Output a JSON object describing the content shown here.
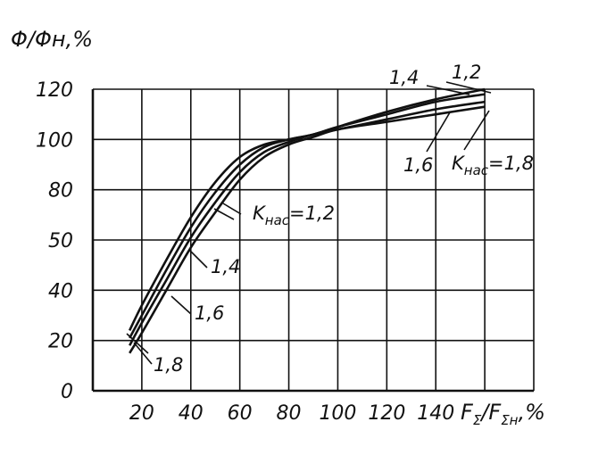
{
  "chart_data": {
    "type": "line",
    "ylabel": "Φ/Φн,%",
    "xlabel": "FΣ/FΣн,%",
    "x_ticks": [
      "20",
      "40",
      "60",
      "80",
      "100",
      "120",
      "140"
    ],
    "y_ticks": [
      "0",
      "20",
      "40",
      "50",
      "80",
      "100",
      "120"
    ],
    "grid": true,
    "series": [
      {
        "name": "1,2",
        "x": [
          15,
          20,
          30,
          40,
          50,
          60,
          70,
          80,
          90,
          100,
          120,
          140,
          160
        ],
        "y": [
          24,
          34,
          52,
          69,
          83,
          93,
          98,
          100,
          102,
          105,
          111,
          116,
          120
        ]
      },
      {
        "name": "1,4",
        "x": [
          15,
          20,
          30,
          40,
          50,
          60,
          70,
          80,
          90,
          100,
          120,
          140,
          160
        ],
        "y": [
          21,
          30,
          48,
          65,
          79,
          90,
          97,
          100,
          102,
          105,
          110,
          115,
          118
        ]
      },
      {
        "name": "1,6",
        "x": [
          15,
          20,
          30,
          40,
          50,
          60,
          70,
          80,
          90,
          100,
          120,
          140,
          160
        ],
        "y": [
          18,
          27,
          44,
          61,
          75,
          87,
          95,
          99,
          102,
          104,
          108,
          112,
          115
        ]
      },
      {
        "name": "1,8",
        "x": [
          15,
          20,
          30,
          40,
          50,
          60,
          70,
          80,
          90,
          100,
          120,
          140,
          160
        ],
        "y": [
          15,
          23,
          40,
          57,
          71,
          84,
          93,
          98,
          101,
          104,
          107,
          110,
          113
        ]
      }
    ],
    "annotations": {
      "k_label_main": "Kнас=1,2",
      "k_label_main_base": "K",
      "k_label_main_sub": "нас",
      "k_label_main_val": "=1,2",
      "left_14": "1,4",
      "left_16": "1,6",
      "left_18": "1,8",
      "right_14": "1,4",
      "right_12": "1,2",
      "right_16": "1,6",
      "right_k_base": "K",
      "right_k_sub": "нас",
      "right_k_val": "=1,8"
    }
  }
}
